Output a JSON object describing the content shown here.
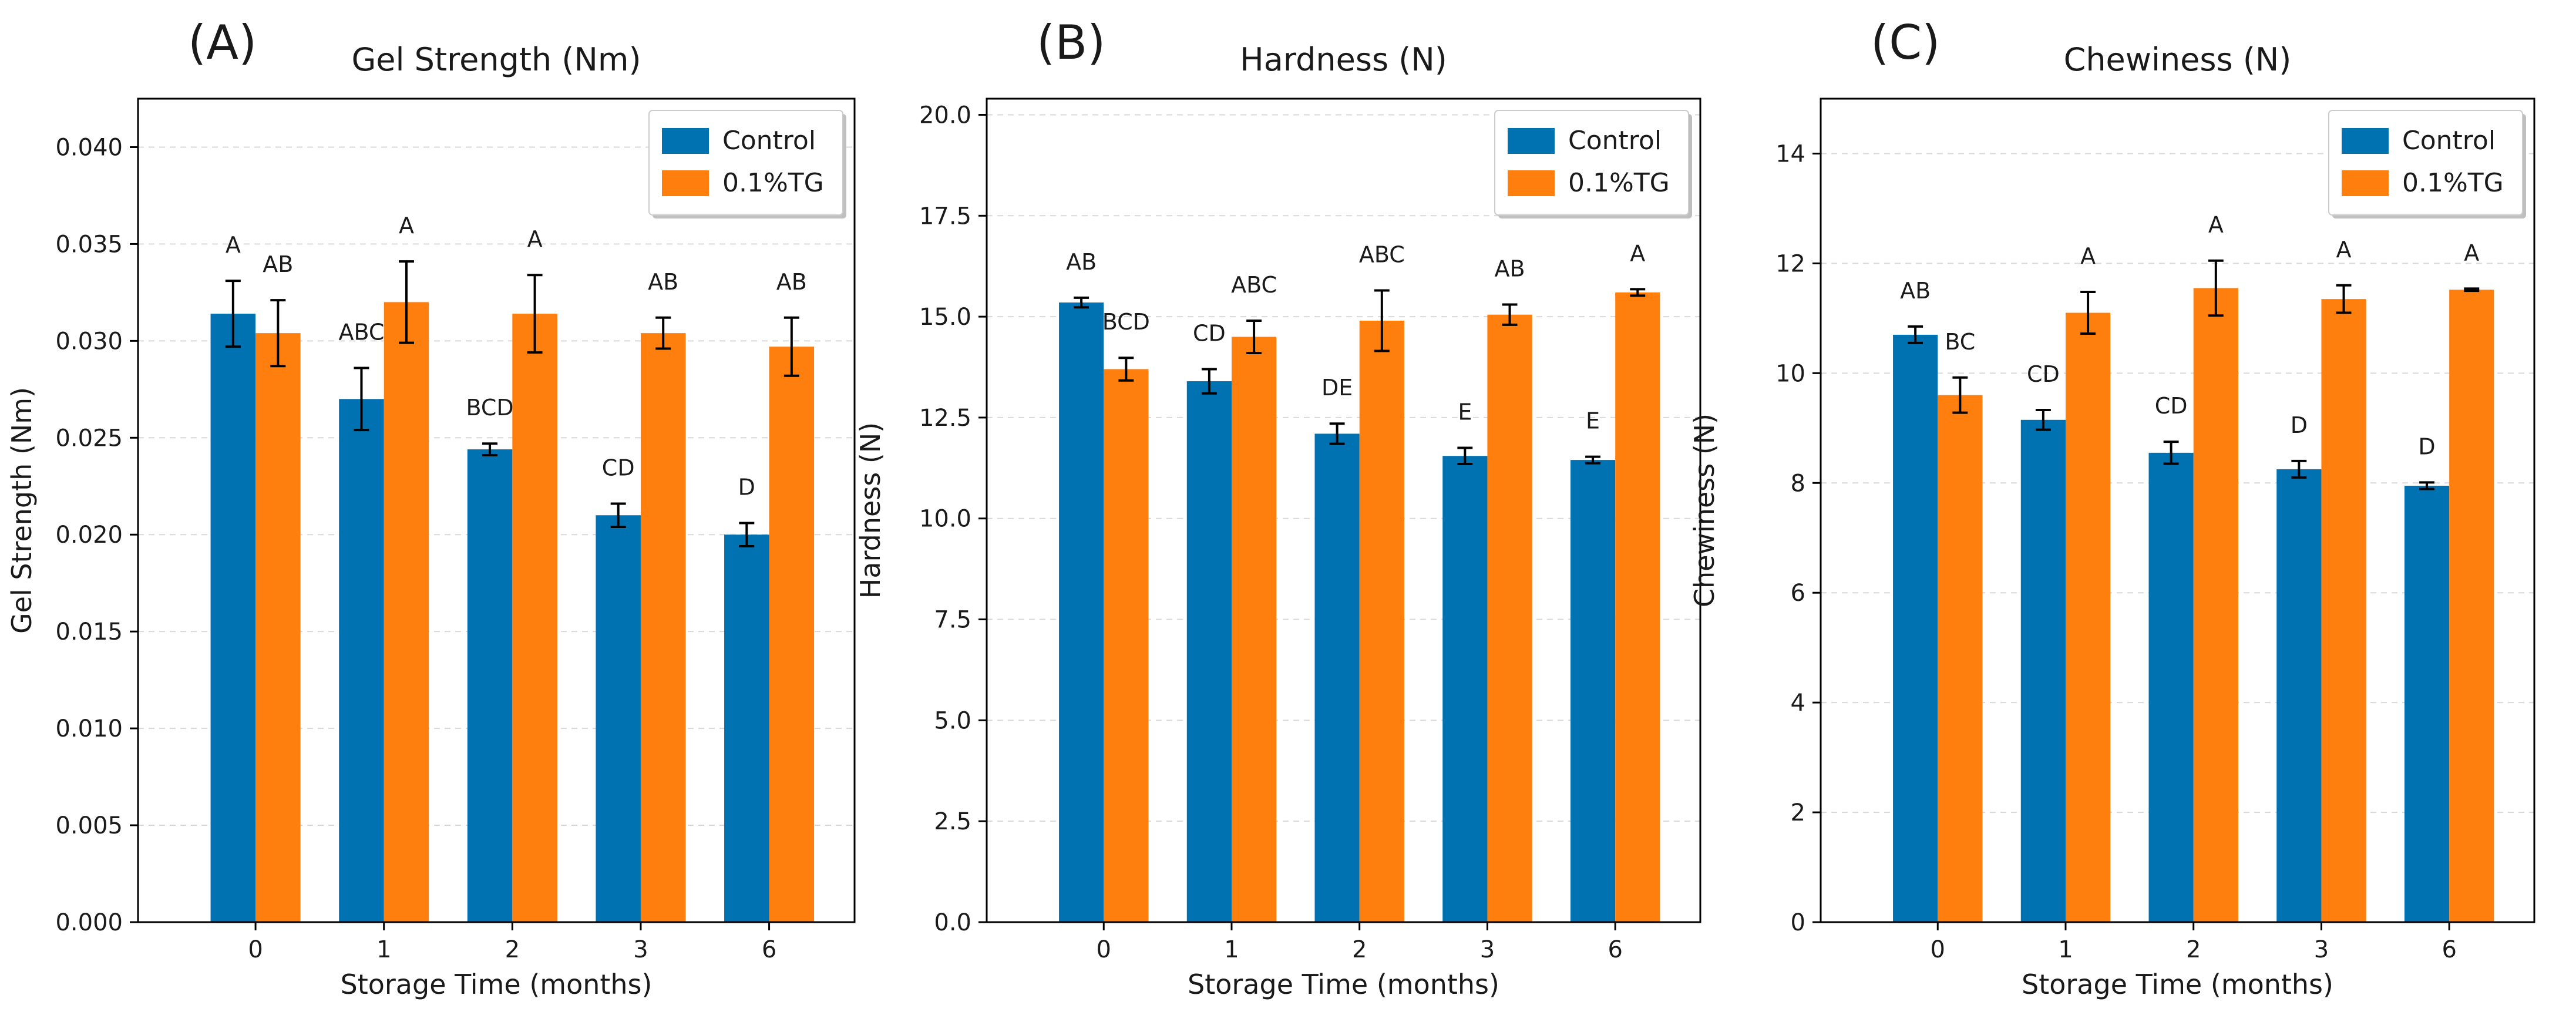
{
  "colors": {
    "control": "#0072b2",
    "tg": "#ff7f0e",
    "grid": "#d9d9d9",
    "axis": "#000000",
    "error_bar": "#000000"
  },
  "chart_data": [
    {
      "type": "bar",
      "panel_label": "(A)",
      "title": "Gel Strength (Nm)",
      "xlabel": "Storage Time (months)",
      "ylabel": "Gel Strength (Nm)",
      "categories": [
        "0",
        "1",
        "2",
        "3",
        "6"
      ],
      "ylim": [
        0,
        0.0425
      ],
      "yticks": [
        0.0,
        0.005,
        0.01,
        0.015,
        0.02,
        0.025,
        0.03,
        0.035,
        0.04
      ],
      "ytick_labels": [
        "0.000",
        "0.005",
        "0.010",
        "0.015",
        "0.020",
        "0.025",
        "0.030",
        "0.035",
        "0.040"
      ],
      "grid": "horizontal-dashed",
      "legend_position": "top-right",
      "series": [
        {
          "name": "Control",
          "color_key": "control",
          "values": [
            0.0314,
            0.027,
            0.0244,
            0.021,
            0.02
          ],
          "errors": [
            0.0017,
            0.0016,
            0.0003,
            0.0006,
            0.0006
          ],
          "letters": [
            "A",
            "ABC",
            "BCD",
            "CD",
            "D"
          ]
        },
        {
          "name": "0.1%TG",
          "color_key": "tg",
          "values": [
            0.0304,
            0.032,
            0.0314,
            0.0304,
            0.0297
          ],
          "errors": [
            0.0017,
            0.0021,
            0.002,
            0.0008,
            0.0015
          ],
          "letters": [
            "AB",
            "A",
            "A",
            "AB",
            "AB"
          ]
        }
      ]
    },
    {
      "type": "bar",
      "panel_label": "(B)",
      "title": "Hardness (N)",
      "xlabel": "Storage Time (months)",
      "ylabel": "Hardness (N)",
      "categories": [
        "0",
        "1",
        "2",
        "3",
        "6"
      ],
      "ylim": [
        0,
        20.4
      ],
      "yticks": [
        0.0,
        2.5,
        5.0,
        7.5,
        10.0,
        12.5,
        15.0,
        17.5,
        20.0
      ],
      "ytick_labels": [
        "0.0",
        "2.5",
        "5.0",
        "7.5",
        "10.0",
        "12.5",
        "15.0",
        "17.5",
        "20.0"
      ],
      "grid": "horizontal-dashed",
      "legend_position": "top-right",
      "series": [
        {
          "name": "Control",
          "color_key": "control",
          "values": [
            15.35,
            13.4,
            12.1,
            11.55,
            11.45
          ],
          "errors": [
            0.12,
            0.3,
            0.25,
            0.2,
            0.08
          ],
          "letters": [
            "AB",
            "CD",
            "DE",
            "E",
            "E"
          ]
        },
        {
          "name": "0.1%TG",
          "color_key": "tg",
          "values": [
            13.7,
            14.5,
            14.9,
            15.05,
            15.6
          ],
          "errors": [
            0.28,
            0.4,
            0.75,
            0.25,
            0.08
          ],
          "letters": [
            "BCD",
            "ABC",
            "ABC",
            "AB",
            "A"
          ]
        }
      ]
    },
    {
      "type": "bar",
      "panel_label": "(C)",
      "title": "Chewiness (N)",
      "xlabel": "Storage Time (months)",
      "ylabel": "Chewiness (N)",
      "categories": [
        "0",
        "1",
        "2",
        "3",
        "6"
      ],
      "ylim": [
        0,
        15
      ],
      "yticks": [
        0,
        2,
        4,
        6,
        8,
        10,
        12,
        14
      ],
      "ytick_labels": [
        "0",
        "2",
        "4",
        "6",
        "8",
        "10",
        "12",
        "14"
      ],
      "grid": "horizontal-dashed",
      "legend_position": "top-right",
      "series": [
        {
          "name": "Control",
          "color_key": "control",
          "values": [
            10.7,
            9.15,
            8.55,
            8.25,
            7.95
          ],
          "errors": [
            0.15,
            0.18,
            0.2,
            0.15,
            0.06
          ],
          "letters": [
            "AB",
            "CD",
            "CD",
            "D",
            "D"
          ]
        },
        {
          "name": "0.1%TG",
          "color_key": "tg",
          "values": [
            9.6,
            11.1,
            11.55,
            11.35,
            11.52
          ],
          "errors": [
            0.32,
            0.38,
            0.5,
            0.25,
            0.02
          ],
          "letters": [
            "BC",
            "A",
            "A",
            "A",
            "A"
          ]
        }
      ]
    }
  ]
}
